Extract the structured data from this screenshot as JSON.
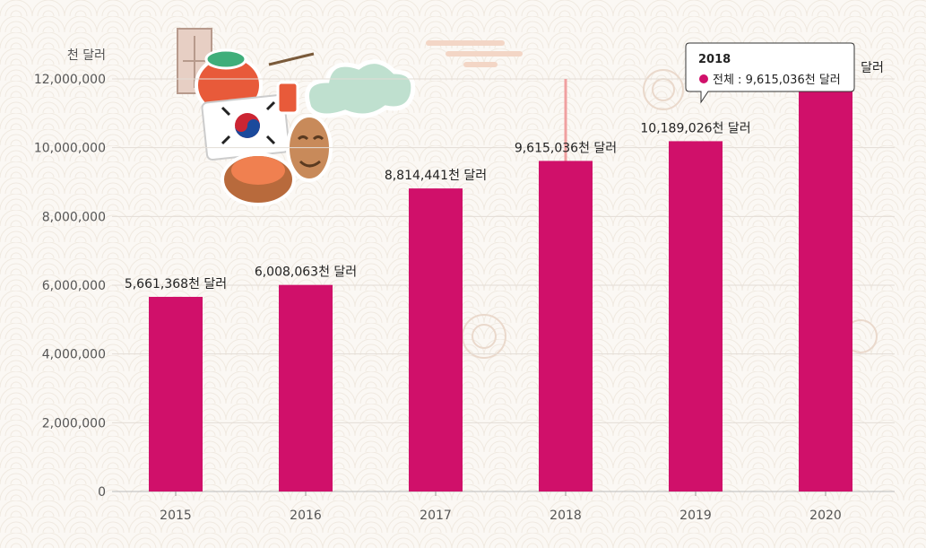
{
  "chart_data": {
    "type": "bar",
    "categories": [
      "2015",
      "2016",
      "2017",
      "2018",
      "2019",
      "2020"
    ],
    "series": [
      {
        "values": [
          5661368,
          6008063,
          8814441,
          9615036,
          10189026,
          12000000
        ]
      }
    ],
    "data_labels": [
      "5,661,368천 달러",
      "6,008,063천 달러",
      "8,814,441천 달러",
      "9,615,036천 달러",
      "10,189,026천 달러",
      "달러"
    ],
    "ylabel": "천 달러",
    "ylim": [
      0,
      12000000
    ],
    "yticks": [
      "0",
      "2,000,000",
      "4,000,000",
      "6,000,000",
      "8,000,000",
      "10,000,000",
      "12,000,000"
    ],
    "grid": true,
    "bar_color": "#d0106a",
    "tooltip": {
      "title": "2018",
      "series_label": "전체",
      "text": "전체 : 9,615,036천 달러",
      "color": "#d0106a"
    }
  }
}
